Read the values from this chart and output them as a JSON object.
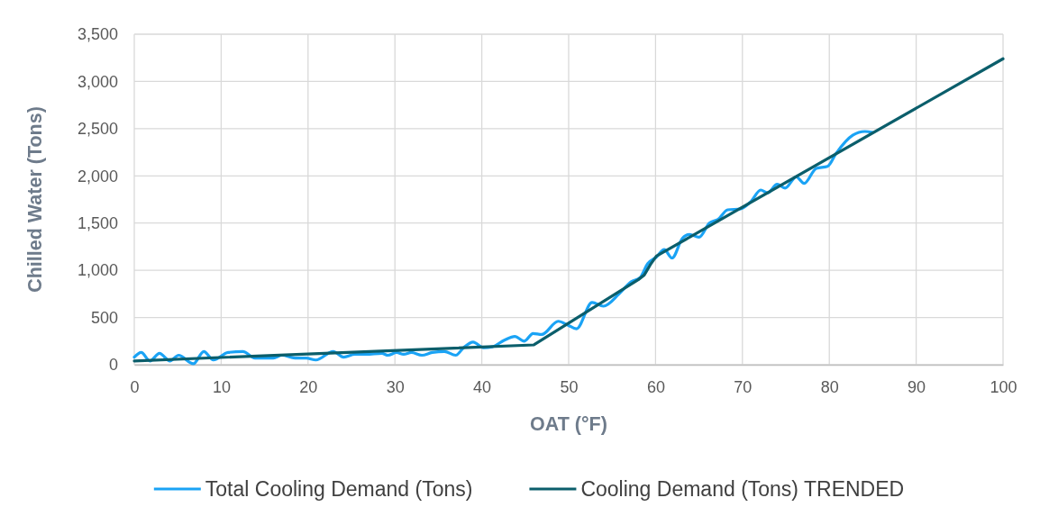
{
  "chart_data": {
    "type": "line",
    "xlabel": "OAT (°F)",
    "ylabel": "Chilled Water (Tons)",
    "xlim": [
      0,
      100
    ],
    "xticks": [
      0,
      10,
      20,
      30,
      40,
      50,
      60,
      70,
      80,
      90,
      100
    ],
    "ylim": [
      0,
      3500
    ],
    "yticks": [
      0,
      500,
      {
        "value": 1000,
        "label": "1,000"
      },
      {
        "value": 1500,
        "label": "1,500"
      },
      {
        "value": 2000,
        "label": "2,000"
      },
      {
        "value": 2500,
        "label": "2,500"
      },
      {
        "value": 3000,
        "label": "3,000"
      },
      {
        "value": 3500,
        "label": "3,500"
      }
    ],
    "grid": true,
    "legend": "bottom",
    "series": [
      {
        "name": "Total Cooling Demand (Tons)",
        "color": "#1aa3f5",
        "x": [
          0,
          0.8,
          1.8,
          2.9,
          4.1,
          5.1,
          6.8,
          8,
          9.1,
          10.8,
          12.5,
          13.9,
          16,
          17,
          18.5,
          19.8,
          20.9,
          22.9,
          24.1,
          25.4,
          26.7,
          28.5,
          29.2,
          30.2,
          31,
          31.9,
          33.1,
          34.3,
          35.7,
          37,
          37.9,
          39,
          40.2,
          41.2,
          42.6,
          43.8,
          44.9,
          45.9,
          46.9,
          48.8,
          49.9,
          50.9,
          52.7,
          54,
          55.8,
          57.2,
          58.2,
          59.1,
          60.1,
          61,
          61.9,
          63.1,
          63.9,
          65,
          66.2,
          67.2,
          68.3,
          69.8,
          71,
          72.1,
          72.9,
          74,
          74.9,
          76.2,
          77.1,
          78.5,
          79.8,
          80.8,
          82.7,
          84.1,
          85
        ],
        "values": [
          80,
          130,
          40,
          120,
          40,
          100,
          10,
          140,
          50,
          130,
          140,
          70,
          70,
          100,
          70,
          70,
          50,
          140,
          80,
          110,
          110,
          120,
          100,
          130,
          110,
          130,
          100,
          130,
          140,
          100,
          180,
          240,
          180,
          190,
          260,
          300,
          250,
          330,
          320,
          460,
          420,
          380,
          660,
          620,
          750,
          880,
          920,
          1070,
          1140,
          1220,
          1130,
          1340,
          1380,
          1350,
          1500,
          1540,
          1640,
          1650,
          1730,
          1850,
          1820,
          1910,
          1870,
          1990,
          1920,
          2080,
          2100,
          2240,
          2430,
          2470,
          2460
        ]
      },
      {
        "name": "Cooling Demand (Tons) TRENDED",
        "color": "#0b5e6b",
        "x": [
          0,
          46,
          58,
          58.7,
          59.4,
          60.1,
          100
        ],
        "values": [
          40,
          210,
          900,
          950,
          1060,
          1150,
          3240
        ]
      }
    ]
  }
}
